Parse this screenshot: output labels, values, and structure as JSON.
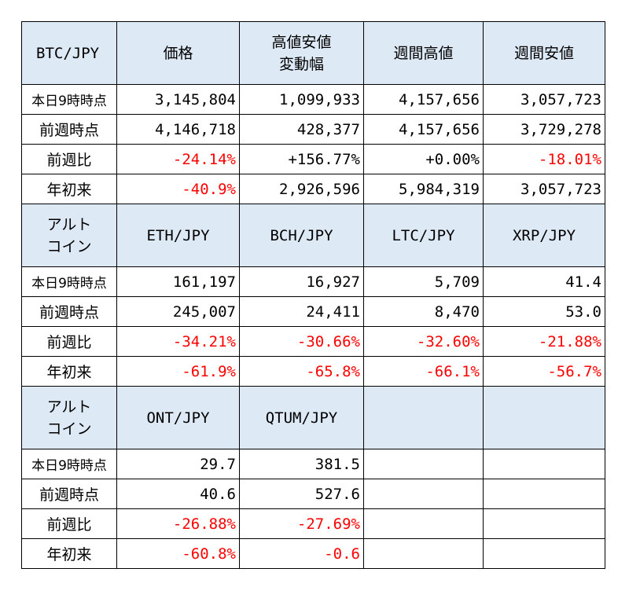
{
  "section1": {
    "headers": [
      "BTC/JPY",
      "価格",
      "高値安値\n変動幅",
      "週間高値",
      "週間安値"
    ],
    "rows": [
      {
        "label": "本日9時時点",
        "values": [
          "3,145,804",
          "1,099,933",
          "4,157,656",
          "3,057,723"
        ],
        "neg": [
          false,
          false,
          false,
          false
        ]
      },
      {
        "label": "前週時点",
        "values": [
          "4,146,718",
          "428,377",
          "4,157,656",
          "3,729,278"
        ],
        "neg": [
          false,
          false,
          false,
          false
        ]
      },
      {
        "label": "前週比",
        "values": [
          "-24.14%",
          "+156.77%",
          "+0.00%",
          "-18.01%"
        ],
        "neg": [
          true,
          false,
          false,
          true
        ]
      },
      {
        "label": "年初来",
        "values": [
          "-40.9%",
          "2,926,596",
          "5,984,319",
          "3,057,723"
        ],
        "neg": [
          true,
          false,
          false,
          false
        ]
      }
    ]
  },
  "section2": {
    "headers": [
      "アルト\nコイン",
      "ETH/JPY",
      "BCH/JPY",
      "LTC/JPY",
      "XRP/JPY"
    ],
    "rows": [
      {
        "label": "本日9時時点",
        "values": [
          "161,197",
          "16,927",
          "5,709",
          "41.4"
        ],
        "neg": [
          false,
          false,
          false,
          false
        ]
      },
      {
        "label": "前週時点",
        "values": [
          "245,007",
          "24,411",
          "8,470",
          "53.0"
        ],
        "neg": [
          false,
          false,
          false,
          false
        ]
      },
      {
        "label": "前週比",
        "values": [
          "-34.21%",
          "-30.66%",
          "-32.60%",
          "-21.88%"
        ],
        "neg": [
          true,
          true,
          true,
          true
        ]
      },
      {
        "label": "年初来",
        "values": [
          "-61.9%",
          "-65.8%",
          "-66.1%",
          "-56.7%"
        ],
        "neg": [
          true,
          true,
          true,
          true
        ]
      }
    ]
  },
  "section3": {
    "headers": [
      "アルト\nコイン",
      "ONT/JPY",
      "QTUM/JPY",
      "",
      ""
    ],
    "rows": [
      {
        "label": "本日9時時点",
        "values": [
          "29.7",
          "381.5",
          "",
          ""
        ],
        "neg": [
          false,
          false,
          false,
          false
        ]
      },
      {
        "label": "前週時点",
        "values": [
          "40.6",
          "527.6",
          "",
          ""
        ],
        "neg": [
          false,
          false,
          false,
          false
        ]
      },
      {
        "label": "前週比",
        "values": [
          "-26.88%",
          "-27.69%",
          "",
          ""
        ],
        "neg": [
          true,
          true,
          false,
          false
        ]
      },
      {
        "label": "年初来",
        "values": [
          "-60.8%",
          "-0.6",
          "",
          ""
        ],
        "neg": [
          true,
          true,
          false,
          false
        ]
      }
    ]
  },
  "colors": {
    "header_bg": "#dde9f5",
    "negative": "#ff0000",
    "border": "#000000"
  }
}
